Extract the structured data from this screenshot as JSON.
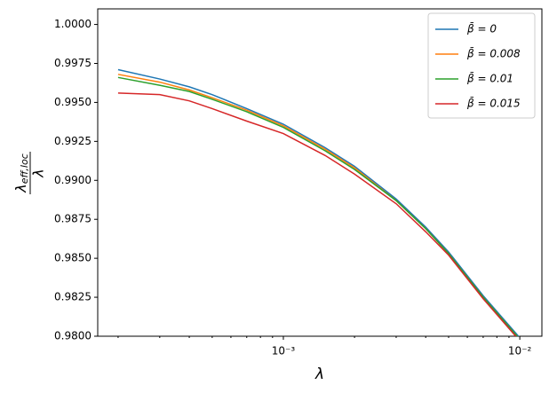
{
  "chart_data": {
    "type": "line",
    "x_label": "λ",
    "y_label": {
      "numerator": "λ",
      "subscript": "eff,loc",
      "denominator": "λ"
    },
    "x": [
      0.0002,
      0.0003,
      0.0004,
      0.0005,
      0.0007,
      0.001,
      0.0015,
      0.002,
      0.003,
      0.004,
      0.005,
      0.007,
      0.01
    ],
    "series": [
      {
        "name": "β̄ = 0",
        "color": "#1f77b4",
        "values": [
          0.9971,
          0.9965,
          0.996,
          0.9955,
          0.9946,
          0.9936,
          0.9921,
          0.9909,
          0.9888,
          0.987,
          0.9854,
          0.9826,
          0.9799
        ]
      },
      {
        "name": "β̄ = 0.008",
        "color": "#ff7f0e",
        "values": [
          0.9968,
          0.9963,
          0.9958,
          0.9953,
          0.9945,
          0.9935,
          0.992,
          0.9908,
          0.9887,
          0.9869,
          0.9853,
          0.9825,
          0.9798
        ]
      },
      {
        "name": "β̄ = 0.01",
        "color": "#2ca02c",
        "values": [
          0.9966,
          0.9961,
          0.9957,
          0.9952,
          0.9944,
          0.9934,
          0.9919,
          0.9907,
          0.9887,
          0.9869,
          0.9853,
          0.9825,
          0.9798
        ]
      },
      {
        "name": "β̄ = 0.015",
        "color": "#d62728",
        "values": [
          0.9956,
          0.9955,
          0.9951,
          0.9946,
          0.9938,
          0.993,
          0.9916,
          0.9904,
          0.9885,
          0.9867,
          0.9852,
          0.9824,
          0.9797
        ]
      }
    ],
    "xscale": "log",
    "xlim": [
      0.000164,
      0.0124
    ],
    "xticks": [
      {
        "value": 0.001,
        "label": "10⁻³"
      },
      {
        "value": 0.01,
        "label": "10⁻²"
      }
    ],
    "xminorticks": [
      0.0002,
      0.0003,
      0.0004,
      0.0005,
      0.0006,
      0.0007,
      0.0008,
      0.0009,
      0.002,
      0.003,
      0.004,
      0.005,
      0.006,
      0.007,
      0.008,
      0.009
    ],
    "ylim": [
      0.98,
      1.001
    ],
    "yticks": [
      {
        "value": 0.98,
        "label": "0.9800"
      },
      {
        "value": 0.9825,
        "label": "0.9825"
      },
      {
        "value": 0.985,
        "label": "0.9850"
      },
      {
        "value": 0.9875,
        "label": "0.9875"
      },
      {
        "value": 0.99,
        "label": "0.9900"
      },
      {
        "value": 0.9925,
        "label": "0.9925"
      },
      {
        "value": 0.995,
        "label": "0.9950"
      },
      {
        "value": 0.9975,
        "label": "0.9975"
      },
      {
        "value": 1.0,
        "label": "1.0000"
      }
    ],
    "legend": "upper right"
  }
}
